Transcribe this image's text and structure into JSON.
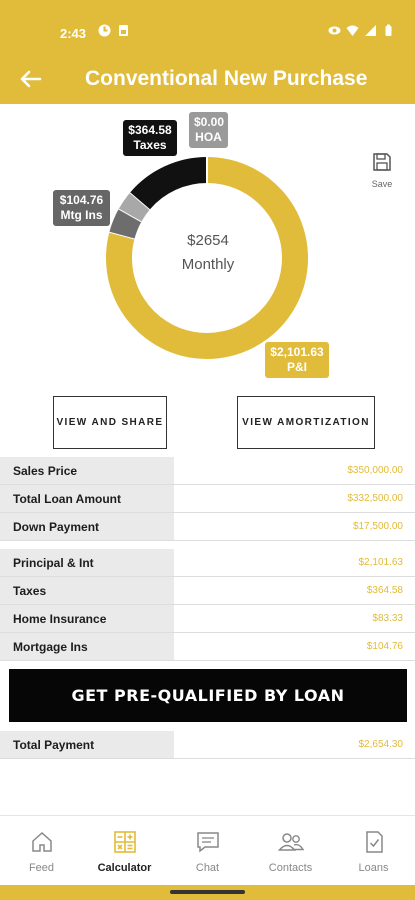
{
  "status": {
    "time": "2:43"
  },
  "header": {
    "title": "Conventional New Purchase"
  },
  "chart_data": {
    "type": "pie",
    "center_amount": "$2654",
    "center_label": "Monthly",
    "slices": [
      {
        "label": "P&I",
        "amount": "$2,101.63",
        "value": 2101.63,
        "color": "#e1bb3a"
      },
      {
        "label": "Mtg Ins",
        "amount": "$104.76",
        "value": 104.76,
        "color": "#6d6d6d"
      },
      {
        "label": "Taxes",
        "amount": "$364.58",
        "value": 364.58,
        "color": "#111111"
      },
      {
        "label": "HOA",
        "amount": "$0.00",
        "value": 0.0,
        "color": "#9a9a9a"
      }
    ],
    "home_insurance": {
      "label": "Home Insurance",
      "value": 83.33,
      "color": "#a8a8a8"
    }
  },
  "toolbar": {
    "save_label": "Save"
  },
  "buttons": {
    "share": "VIEW AND SHARE",
    "amortization": "VIEW AMORTIZATION",
    "cta": "GET PRE-QUALIFIED BY LOAN"
  },
  "loan_table": [
    {
      "label": "Sales Price",
      "value": "$350,000.00"
    },
    {
      "label": "Total Loan Amount",
      "value": "$332,500.00"
    },
    {
      "label": "Down Payment",
      "value": "$17,500.00"
    }
  ],
  "payment_table": [
    {
      "label": "Principal & Int",
      "value": "$2,101.63"
    },
    {
      "label": "Taxes",
      "value": "$364.58"
    },
    {
      "label": "Home Insurance",
      "value": "$83.33"
    },
    {
      "label": "Mortgage Ins",
      "value": "$104.76"
    }
  ],
  "total": {
    "label": "Total Payment",
    "value": "$2,654.30"
  },
  "nav": [
    {
      "label": "Feed",
      "icon": "home-icon"
    },
    {
      "label": "Calculator",
      "icon": "calculator-icon",
      "active": true
    },
    {
      "label": "Chat",
      "icon": "chat-icon"
    },
    {
      "label": "Contacts",
      "icon": "contacts-icon"
    },
    {
      "label": "Loans",
      "icon": "loans-icon"
    }
  ],
  "colors": {
    "accent": "#e1bb3a",
    "dark": "#060606"
  }
}
